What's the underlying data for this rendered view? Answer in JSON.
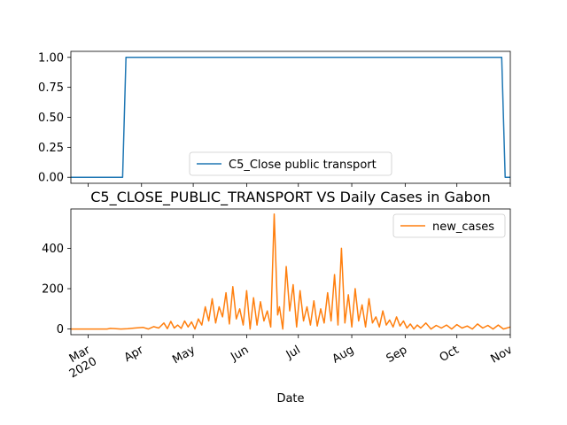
{
  "chart_data": [
    {
      "type": "line",
      "title": "",
      "xlabel": "",
      "ylabel": "",
      "ylim": [
        -0.05,
        1.05
      ],
      "yticks": [
        0.0,
        0.25,
        0.5,
        0.75,
        1.0
      ],
      "ytick_labels": [
        "0.00",
        "0.25",
        "0.50",
        "0.75",
        "1.00"
      ],
      "xlim": [
        "2020-02-20",
        "2020-11-01"
      ],
      "grid": false,
      "legend_position": "lower center",
      "series": [
        {
          "name": "C5_Close public transport",
          "color": "#1f77b4",
          "x": [
            "2020-02-20",
            "2020-03-21",
            "2020-03-23",
            "2020-10-27",
            "2020-10-29",
            "2020-11-01"
          ],
          "y": [
            0,
            0,
            1,
            1,
            0,
            0
          ]
        }
      ]
    },
    {
      "type": "line",
      "title": "C5_CLOSE_PUBLIC_TRANSPORT VS Daily Cases in Gabon",
      "xlabel": "Date",
      "ylabel": "",
      "ylim": [
        -28,
        595
      ],
      "yticks": [
        0,
        200,
        400
      ],
      "ytick_labels": [
        "0",
        "200",
        "400"
      ],
      "xlim": [
        "2020-02-20",
        "2020-11-01"
      ],
      "xticks": [
        "2020-03-01",
        "2020-04-01",
        "2020-05-01",
        "2020-06-01",
        "2020-07-01",
        "2020-08-01",
        "2020-09-01",
        "2020-10-01",
        "2020-11-01"
      ],
      "xtick_labels": [
        "Mar\n2020",
        "Apr",
        "May",
        "Jun",
        "Jul",
        "Aug",
        "Sep",
        "Oct",
        "Nov"
      ],
      "grid": false,
      "legend_position": "upper right",
      "series": [
        {
          "name": "new_cases",
          "color": "#ff7f0e",
          "x": [
            "2020-02-20",
            "2020-03-12",
            "2020-03-14",
            "2020-03-20",
            "2020-03-24",
            "2020-03-28",
            "2020-04-02",
            "2020-04-05",
            "2020-04-08",
            "2020-04-11",
            "2020-04-14",
            "2020-04-16",
            "2020-04-18",
            "2020-04-20",
            "2020-04-22",
            "2020-04-24",
            "2020-04-26",
            "2020-04-28",
            "2020-04-30",
            "2020-05-02",
            "2020-05-04",
            "2020-05-06",
            "2020-05-08",
            "2020-05-10",
            "2020-05-12",
            "2020-05-14",
            "2020-05-16",
            "2020-05-18",
            "2020-05-20",
            "2020-05-22",
            "2020-05-24",
            "2020-05-26",
            "2020-05-28",
            "2020-05-30",
            "2020-06-01",
            "2020-06-03",
            "2020-06-05",
            "2020-06-07",
            "2020-06-09",
            "2020-06-11",
            "2020-06-13",
            "2020-06-15",
            "2020-06-17",
            "2020-06-19",
            "2020-06-20",
            "2020-06-22",
            "2020-06-24",
            "2020-06-26",
            "2020-06-28",
            "2020-06-30",
            "2020-07-02",
            "2020-07-04",
            "2020-07-06",
            "2020-07-08",
            "2020-07-10",
            "2020-07-12",
            "2020-07-14",
            "2020-07-16",
            "2020-07-18",
            "2020-07-20",
            "2020-07-22",
            "2020-07-24",
            "2020-07-26",
            "2020-07-28",
            "2020-07-30",
            "2020-08-01",
            "2020-08-03",
            "2020-08-05",
            "2020-08-07",
            "2020-08-09",
            "2020-08-11",
            "2020-08-13",
            "2020-08-15",
            "2020-08-17",
            "2020-08-19",
            "2020-08-21",
            "2020-08-23",
            "2020-08-25",
            "2020-08-27",
            "2020-08-29",
            "2020-08-31",
            "2020-09-02",
            "2020-09-04",
            "2020-09-06",
            "2020-09-08",
            "2020-09-10",
            "2020-09-13",
            "2020-09-16",
            "2020-09-19",
            "2020-09-22",
            "2020-09-25",
            "2020-09-28",
            "2020-10-01",
            "2020-10-04",
            "2020-10-07",
            "2020-10-10",
            "2020-10-13",
            "2020-10-16",
            "2020-10-19",
            "2020-10-22",
            "2020-10-25",
            "2020-10-28",
            "2020-11-01"
          ],
          "y": [
            0,
            0,
            3,
            0,
            2,
            5,
            8,
            0,
            12,
            5,
            30,
            2,
            38,
            5,
            20,
            3,
            40,
            10,
            35,
            0,
            50,
            20,
            110,
            40,
            150,
            30,
            110,
            60,
            180,
            25,
            210,
            50,
            100,
            20,
            190,
            0,
            155,
            20,
            135,
            40,
            90,
            10,
            570,
            70,
            110,
            0,
            310,
            90,
            220,
            10,
            190,
            40,
            110,
            20,
            140,
            15,
            100,
            30,
            180,
            40,
            270,
            20,
            400,
            30,
            170,
            10,
            200,
            40,
            120,
            10,
            150,
            30,
            60,
            10,
            90,
            20,
            45,
            10,
            60,
            15,
            40,
            5,
            25,
            0,
            20,
            5,
            30,
            0,
            18,
            5,
            20,
            0,
            22,
            5,
            15,
            0,
            25,
            5,
            18,
            0,
            20,
            0,
            10
          ]
        }
      ]
    }
  ]
}
